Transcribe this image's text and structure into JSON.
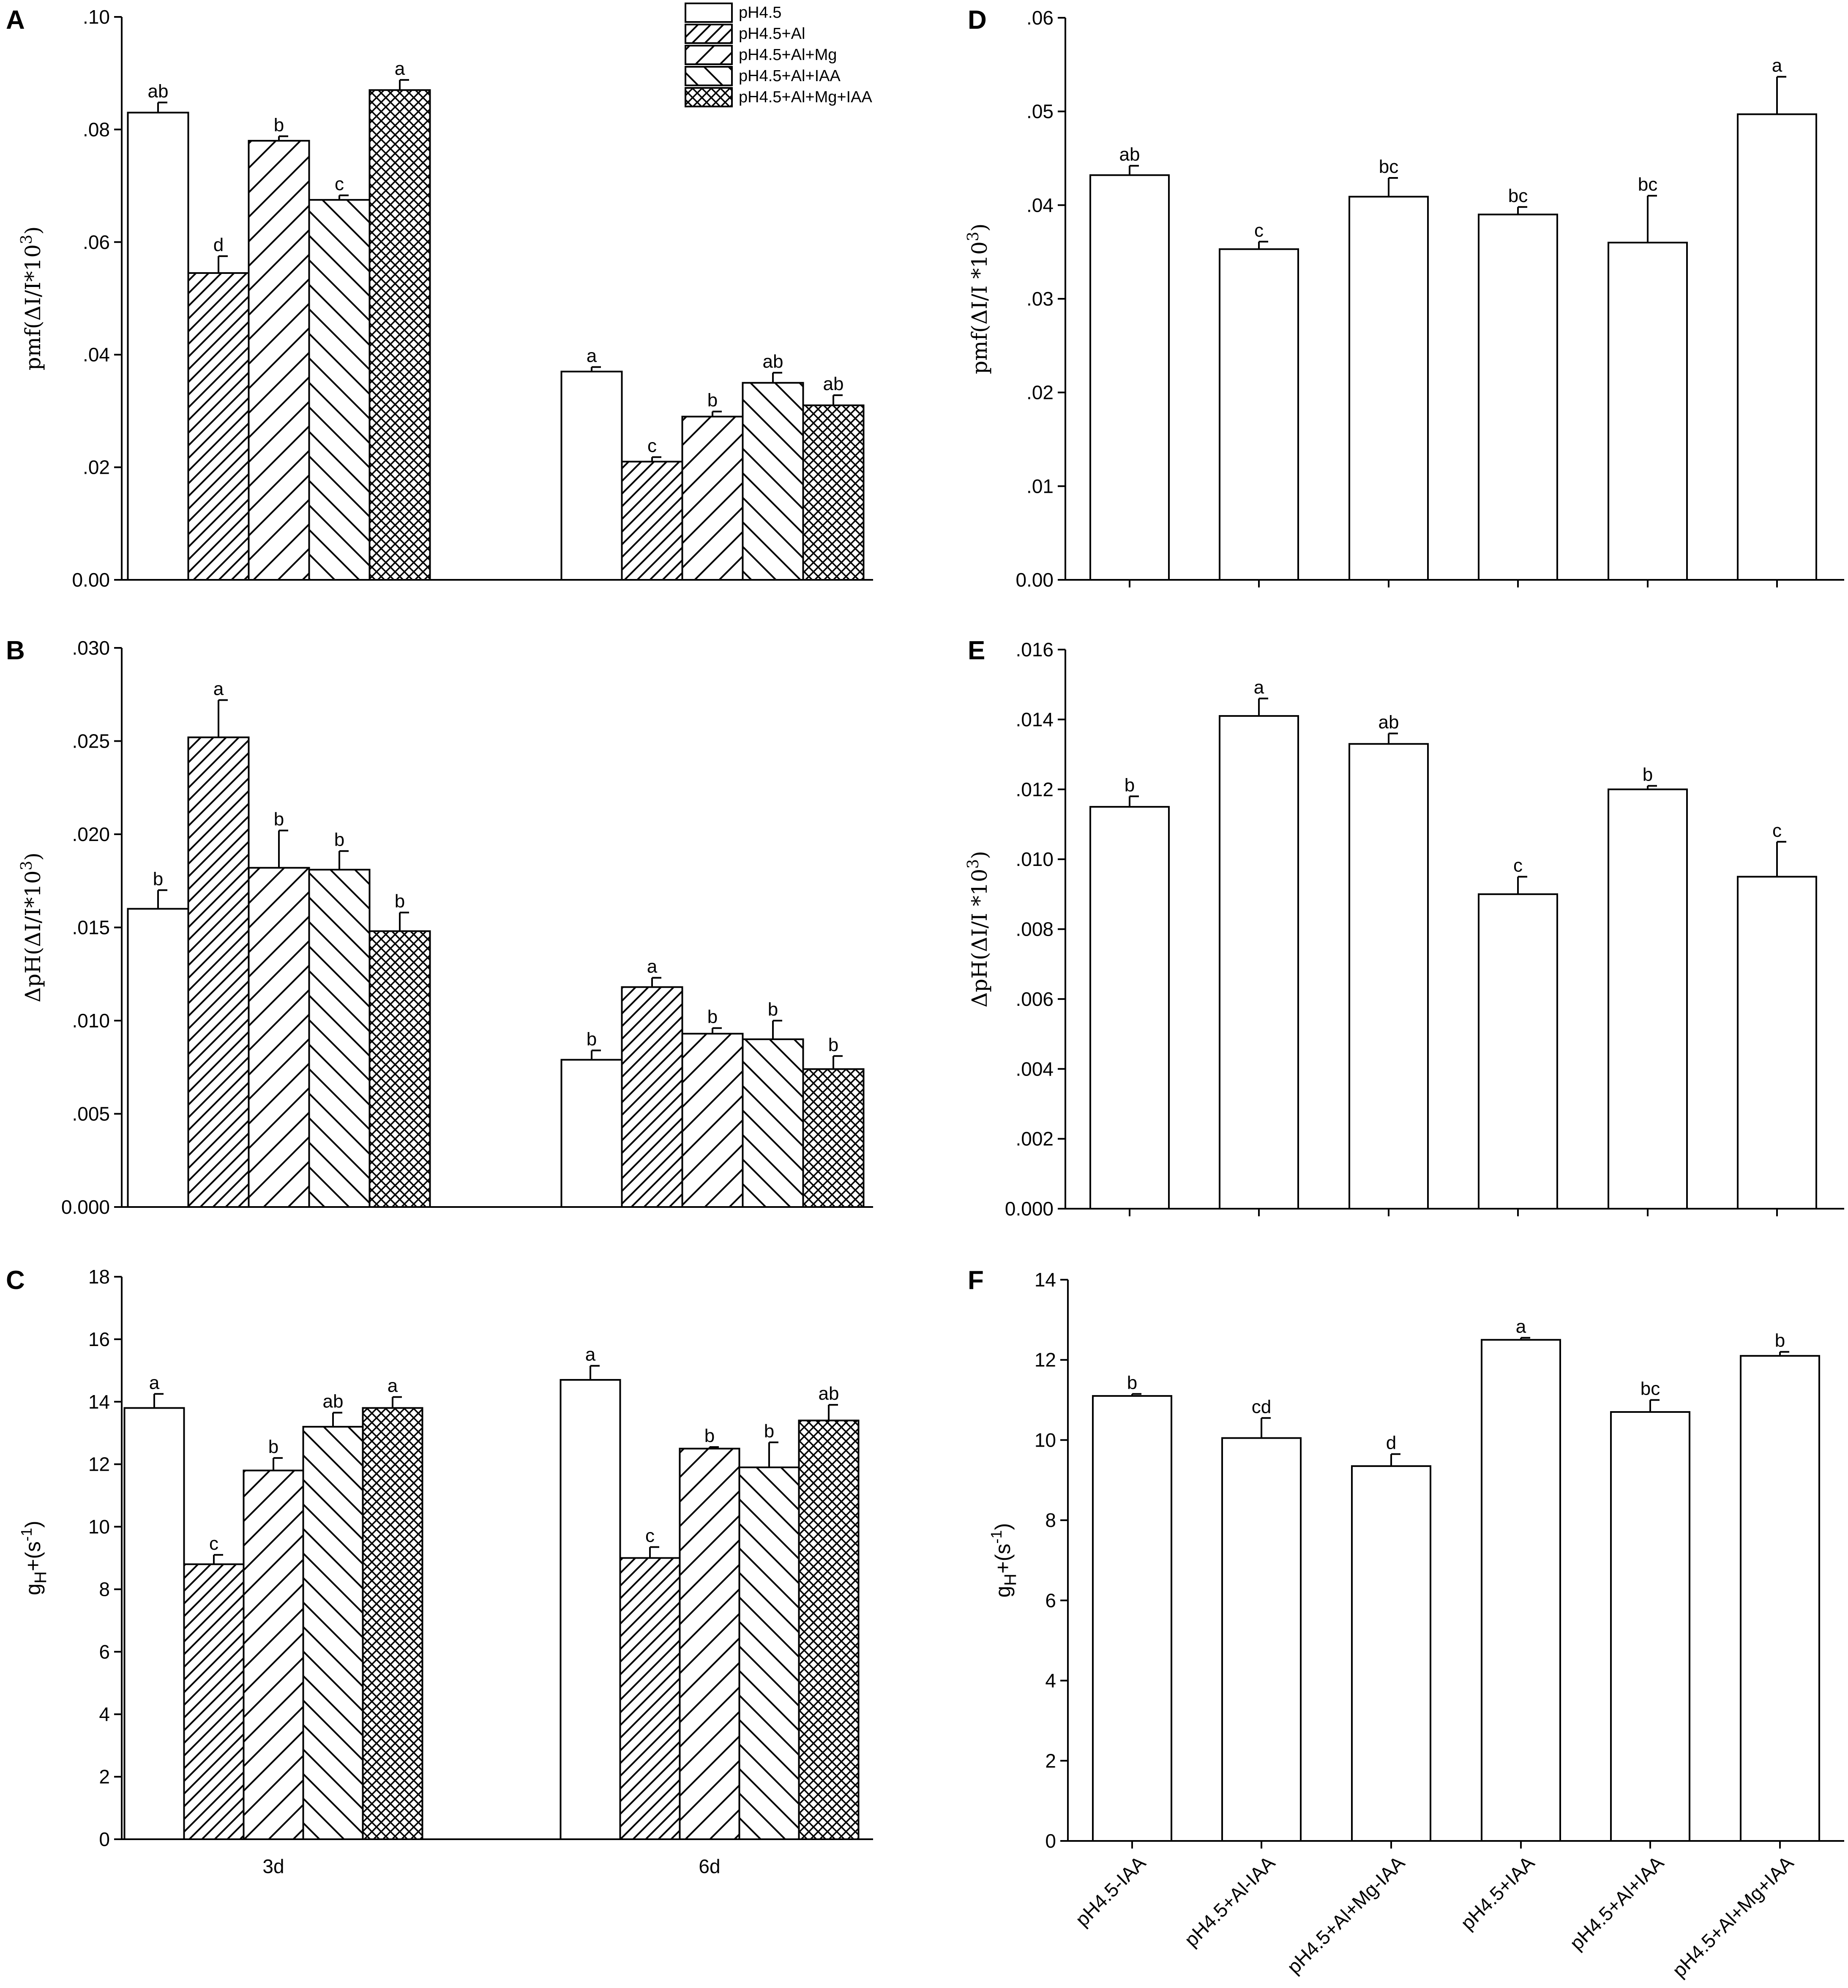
{
  "figure": {
    "background": "#ffffff",
    "ink": "#000000"
  },
  "legend": {
    "entries": [
      {
        "label": "pH4.5",
        "pattern": "none"
      },
      {
        "label": "pH4.5+Al",
        "pattern": "diag-dense"
      },
      {
        "label": "pH4.5+Al+Mg",
        "pattern": "diag"
      },
      {
        "label": "pH4.5+Al+IAA",
        "pattern": "back-diag"
      },
      {
        "label": "pH4.5+Al+Mg+IAA",
        "pattern": "cross"
      }
    ]
  },
  "chart_data": [
    {
      "id": "A",
      "type": "bar",
      "panel_letter": "A",
      "ylabel": "pmf(ΔI/I*10³)",
      "ylim": [
        0,
        0.1
      ],
      "yticks": [
        0,
        0.02,
        0.04,
        0.06,
        0.08,
        0.1
      ],
      "ytick_labels": [
        "0.00",
        ".02",
        ".04",
        ".06",
        ".08",
        ".10"
      ],
      "categories": [
        "3d",
        "6d"
      ],
      "show_category_labels": false,
      "series": [
        {
          "name": "pH4.5",
          "pattern": "none",
          "values": [
            0.083,
            0.037
          ],
          "errors": [
            0.0018,
            0.0008
          ],
          "letters": [
            "ab",
            "a"
          ]
        },
        {
          "name": "pH4.5+Al",
          "pattern": "diag-dense",
          "values": [
            0.0545,
            0.021
          ],
          "errors": [
            0.003,
            0.0008
          ],
          "letters": [
            "d",
            "c"
          ]
        },
        {
          "name": "pH4.5+Al+Mg",
          "pattern": "diag",
          "values": [
            0.078,
            0.029
          ],
          "errors": [
            0.0008,
            0.0009
          ],
          "letters": [
            "b",
            "b"
          ]
        },
        {
          "name": "pH4.5+Al+IAA",
          "pattern": "back-diag",
          "values": [
            0.0675,
            0.035
          ],
          "errors": [
            0.0008,
            0.0018
          ],
          "letters": [
            "c",
            "ab"
          ]
        },
        {
          "name": "pH4.5+Al+Mg+IAA",
          "pattern": "cross",
          "values": [
            0.087,
            0.031
          ],
          "errors": [
            0.0018,
            0.0018
          ],
          "letters": [
            "a",
            "ab"
          ]
        }
      ]
    },
    {
      "id": "B",
      "type": "bar",
      "panel_letter": "B",
      "ylabel": "ΔpH(ΔI/I*10³)",
      "ylim": [
        0,
        0.03
      ],
      "yticks": [
        0,
        0.005,
        0.01,
        0.015,
        0.02,
        0.025,
        0.03
      ],
      "ytick_labels": [
        "0.000",
        ".005",
        ".010",
        ".015",
        ".020",
        ".025",
        ".030"
      ],
      "categories": [
        "3d",
        "6d"
      ],
      "show_category_labels": false,
      "series": [
        {
          "name": "pH4.5",
          "pattern": "none",
          "values": [
            0.016,
            0.0079
          ],
          "errors": [
            0.001,
            0.0005
          ],
          "letters": [
            "b",
            "b"
          ]
        },
        {
          "name": "pH4.5+Al",
          "pattern": "diag-dense",
          "values": [
            0.0252,
            0.0118
          ],
          "errors": [
            0.002,
            0.0005
          ],
          "letters": [
            "a",
            "a"
          ]
        },
        {
          "name": "pH4.5+Al+Mg",
          "pattern": "diag",
          "values": [
            0.0182,
            0.0093
          ],
          "errors": [
            0.002,
            0.0003
          ],
          "letters": [
            "b",
            "b"
          ]
        },
        {
          "name": "pH4.5+Al+IAA",
          "pattern": "back-diag",
          "values": [
            0.0181,
            0.009
          ],
          "errors": [
            0.001,
            0.001
          ],
          "letters": [
            "b",
            "b"
          ]
        },
        {
          "name": "pH4.5+Al+Mg+IAA",
          "pattern": "cross",
          "values": [
            0.0148,
            0.0074
          ],
          "errors": [
            0.001,
            0.0007
          ],
          "letters": [
            "b",
            "b"
          ]
        }
      ]
    },
    {
      "id": "C",
      "type": "bar",
      "panel_letter": "C",
      "ylabel": "gH+(s-1)",
      "ylim": [
        0,
        18
      ],
      "yticks": [
        0,
        2,
        4,
        6,
        8,
        10,
        12,
        14,
        16,
        18
      ],
      "ytick_labels": [
        "0",
        "2",
        "4",
        "6",
        "8",
        "10",
        "12",
        "14",
        "16",
        "18"
      ],
      "categories": [
        "3d",
        "6d"
      ],
      "show_category_labels": true,
      "series": [
        {
          "name": "pH4.5",
          "pattern": "none",
          "values": [
            13.8,
            14.7
          ],
          "errors": [
            0.45,
            0.45
          ],
          "letters": [
            "a",
            "a"
          ]
        },
        {
          "name": "pH4.5+Al",
          "pattern": "diag-dense",
          "values": [
            8.8,
            9.0
          ],
          "errors": [
            0.3,
            0.35
          ],
          "letters": [
            "c",
            "c"
          ]
        },
        {
          "name": "pH4.5+Al+Mg",
          "pattern": "diag",
          "values": [
            11.8,
            12.5
          ],
          "errors": [
            0.4,
            0.05
          ],
          "letters": [
            "b",
            "b"
          ]
        },
        {
          "name": "pH4.5+Al+IAA",
          "pattern": "back-diag",
          "values": [
            13.2,
            11.9
          ],
          "errors": [
            0.45,
            0.8
          ],
          "letters": [
            "ab",
            "b"
          ]
        },
        {
          "name": "pH4.5+Al+Mg+IAA",
          "pattern": "cross",
          "values": [
            13.8,
            13.4
          ],
          "errors": [
            0.35,
            0.5
          ],
          "letters": [
            "a",
            "ab"
          ]
        }
      ]
    },
    {
      "id": "D",
      "type": "bar",
      "panel_letter": "D",
      "ylabel": "pmf(ΔI/I *10³)",
      "ylim": [
        0,
        0.06
      ],
      "yticks": [
        0,
        0.01,
        0.02,
        0.03,
        0.04,
        0.05,
        0.06
      ],
      "ytick_labels": [
        "0.00",
        ".01",
        ".02",
        ".03",
        ".04",
        ".05",
        ".06"
      ],
      "categories": [
        "pH4.5-IAA",
        "pH4.5+Al-IAA",
        "pH4.5+Al+Mg-IAA",
        "pH4.5+IAA",
        "pH4.5+Al+IAA",
        "pH4.5+Al+Mg+IAA"
      ],
      "show_category_labels": false,
      "values": [
        0.0432,
        0.0353,
        0.0409,
        0.039,
        0.036,
        0.0497
      ],
      "errors": [
        0.001,
        0.0008,
        0.002,
        0.0008,
        0.005,
        0.004
      ],
      "letters": [
        "ab",
        "c",
        "bc",
        "bc",
        "bc",
        "a"
      ]
    },
    {
      "id": "E",
      "type": "bar",
      "panel_letter": "E",
      "ylabel": "ΔpH(ΔI/I *10³)",
      "ylim": [
        0,
        0.016
      ],
      "yticks": [
        0,
        0.002,
        0.004,
        0.006,
        0.008,
        0.01,
        0.012,
        0.014,
        0.016
      ],
      "ytick_labels": [
        "0.000",
        ".002",
        ".004",
        ".006",
        ".008",
        ".010",
        ".012",
        ".014",
        ".016"
      ],
      "categories": [
        "pH4.5-IAA",
        "pH4.5+Al-IAA",
        "pH4.5+Al+Mg-IAA",
        "pH4.5+IAA",
        "pH4.5+Al+IAA",
        "pH4.5+Al+Mg+IAA"
      ],
      "show_category_labels": false,
      "values": [
        0.0115,
        0.0141,
        0.0133,
        0.009,
        0.012,
        0.0095
      ],
      "errors": [
        0.0003,
        0.0005,
        0.0003,
        0.0005,
        0.0001,
        0.001
      ],
      "letters": [
        "b",
        "a",
        "ab",
        "c",
        "b",
        "c"
      ]
    },
    {
      "id": "F",
      "type": "bar",
      "panel_letter": "F",
      "ylabel": "gH+(s-1)",
      "ylim": [
        0,
        14
      ],
      "yticks": [
        0,
        2,
        4,
        6,
        8,
        10,
        12,
        14
      ],
      "ytick_labels": [
        "0",
        "2",
        "4",
        "6",
        "8",
        "10",
        "12",
        "14"
      ],
      "categories": [
        "pH4.5-IAA",
        "pH4.5+Al-IAA",
        "pH4.5+Al+Mg-IAA",
        "pH4.5+IAA",
        "pH4.5+Al+IAA",
        "pH4.5+Al+Mg+IAA"
      ],
      "show_category_labels": true,
      "values": [
        11.1,
        10.05,
        9.35,
        12.5,
        10.7,
        12.1
      ],
      "errors": [
        0.05,
        0.5,
        0.3,
        0.05,
        0.3,
        0.1
      ],
      "letters": [
        "b",
        "cd",
        "d",
        "a",
        "bc",
        "b"
      ]
    }
  ]
}
